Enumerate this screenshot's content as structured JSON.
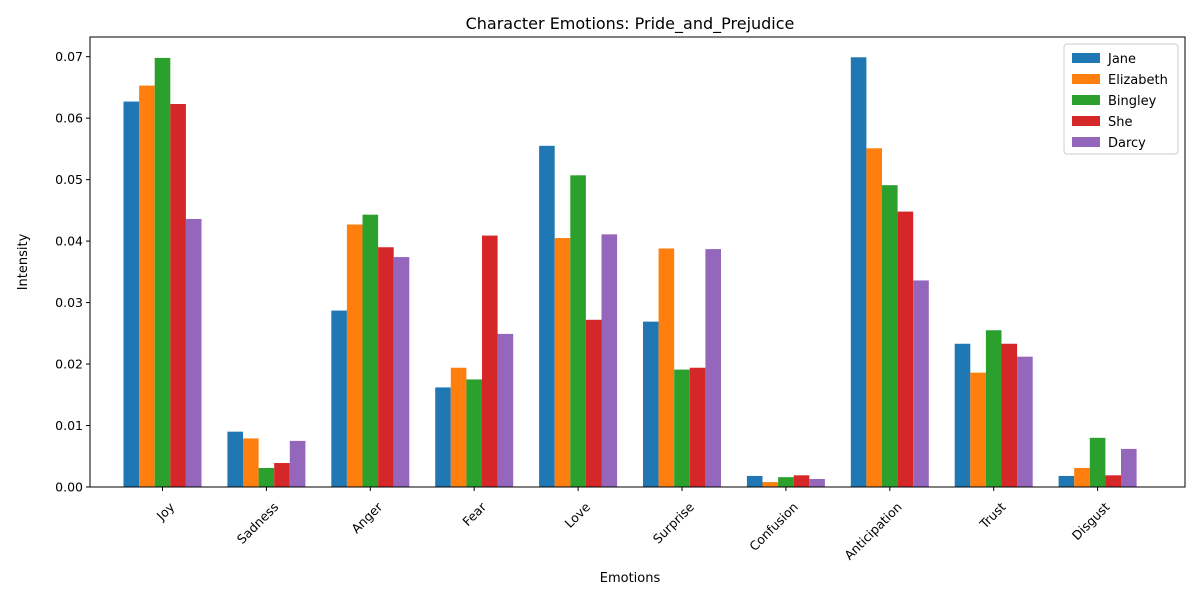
{
  "chart_data": {
    "type": "bar",
    "title": "Character Emotions: Pride_and_Prejudice",
    "xlabel": "Emotions",
    "ylabel": "Intensity",
    "ylim": [
      0,
      0.0732
    ],
    "yticks": [
      "0.00",
      "0.01",
      "0.02",
      "0.03",
      "0.04",
      "0.05",
      "0.06",
      "0.07"
    ],
    "legend_position": "top-right",
    "categories": [
      "Joy",
      "Sadness",
      "Anger",
      "Fear",
      "Love",
      "Surprise",
      "Confusion",
      "Anticipation",
      "Trust",
      "Disgust"
    ],
    "series": [
      {
        "name": "Jane",
        "color": "#1f77b4",
        "values": [
          0.0627,
          0.009,
          0.0287,
          0.0162,
          0.0555,
          0.0269,
          0.0018,
          0.0699,
          0.0233,
          0.0018
        ]
      },
      {
        "name": "Elizabeth",
        "color": "#ff7f0e",
        "values": [
          0.0653,
          0.0079,
          0.0427,
          0.0194,
          0.0405,
          0.0388,
          0.0008,
          0.0551,
          0.0186,
          0.0031
        ]
      },
      {
        "name": "Bingley",
        "color": "#2ca02c",
        "values": [
          0.0698,
          0.0031,
          0.0443,
          0.0175,
          0.0507,
          0.0191,
          0.0016,
          0.0491,
          0.0255,
          0.008
        ]
      },
      {
        "name": "She",
        "color": "#d62728",
        "values": [
          0.0623,
          0.0039,
          0.039,
          0.0409,
          0.0272,
          0.0194,
          0.0019,
          0.0448,
          0.0233,
          0.0019
        ]
      },
      {
        "name": "Darcy",
        "color": "#9467bd",
        "values": [
          0.0436,
          0.0075,
          0.0374,
          0.0249,
          0.0411,
          0.0387,
          0.0013,
          0.0336,
          0.0212,
          0.0062
        ]
      }
    ]
  }
}
